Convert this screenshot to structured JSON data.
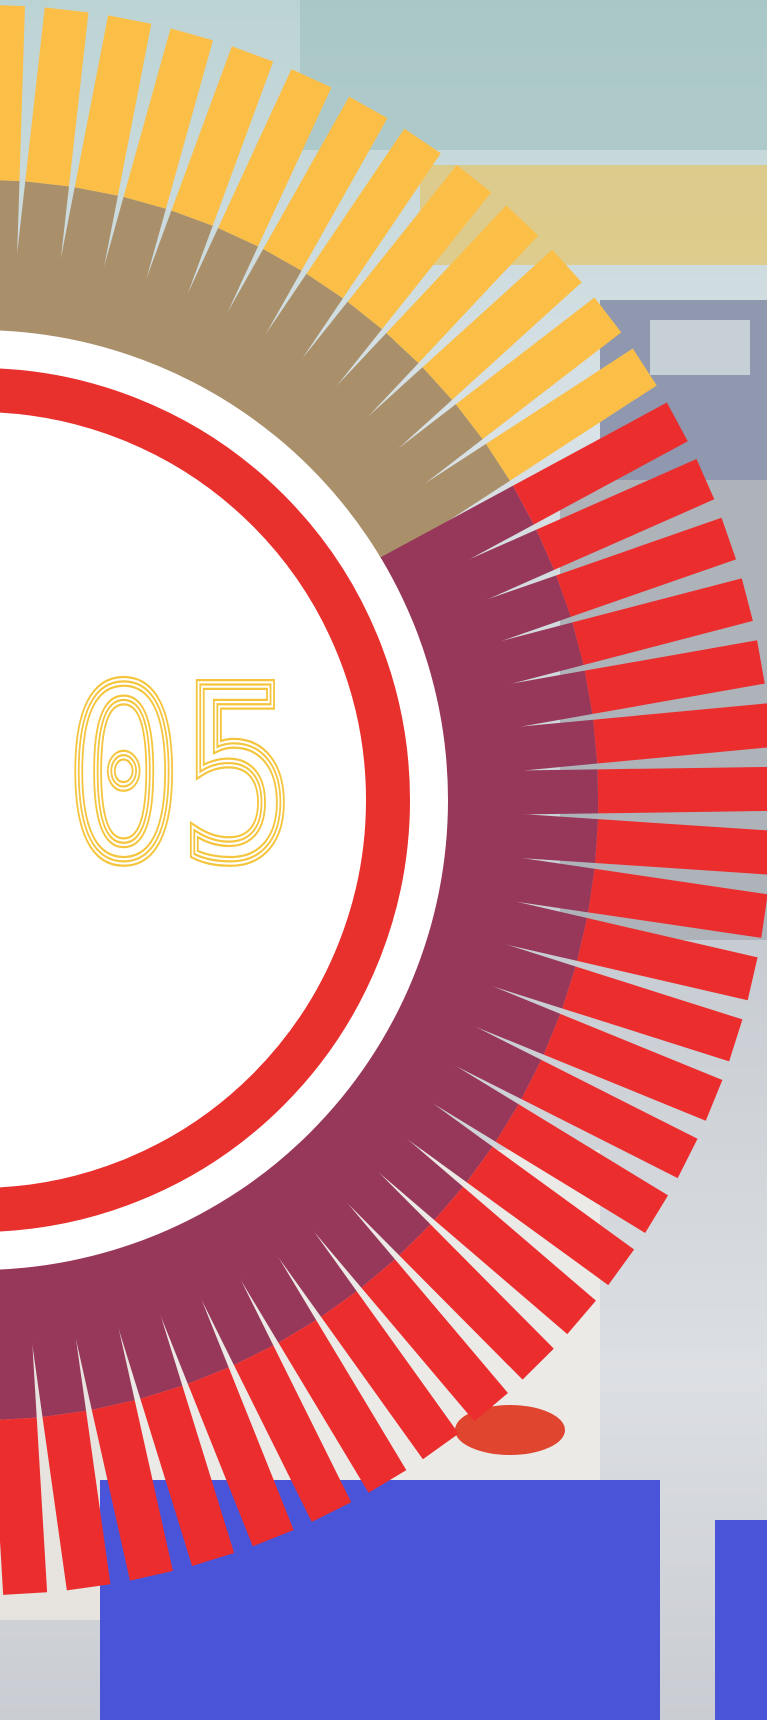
{
  "section_number": "05"
}
